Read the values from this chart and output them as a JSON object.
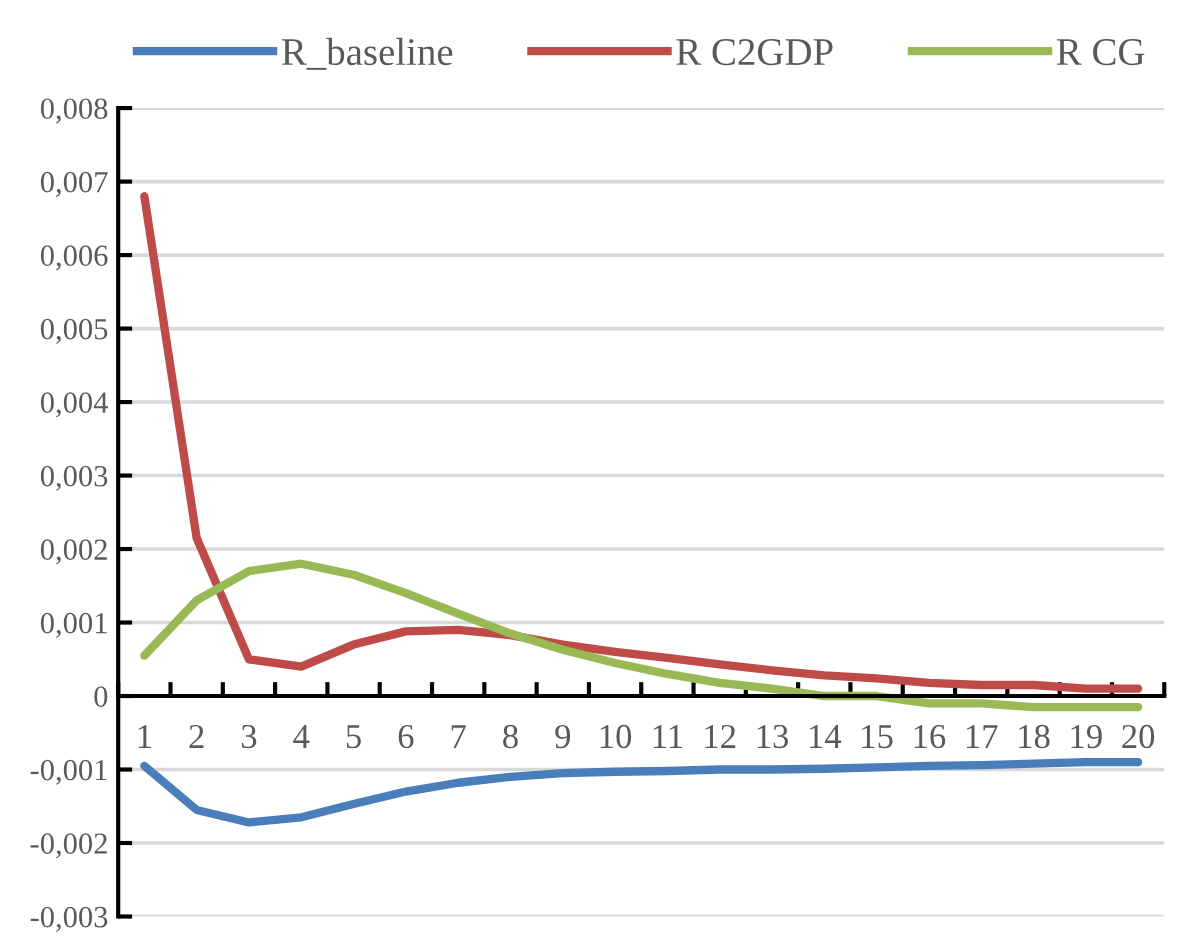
{
  "chart_data": {
    "type": "line",
    "categories": [
      "1",
      "2",
      "3",
      "4",
      "5",
      "6",
      "7",
      "8",
      "9",
      "10",
      "11",
      "12",
      "13",
      "14",
      "15",
      "16",
      "17",
      "18",
      "19",
      "20"
    ],
    "series": [
      {
        "name": "R_baseline",
        "color": "#4a7ebb",
        "values": [
          -0.00095,
          -0.00155,
          -0.00172,
          -0.00165,
          -0.00147,
          -0.0013,
          -0.00118,
          -0.0011,
          -0.00105,
          -0.00103,
          -0.00102,
          -0.001,
          -0.001,
          -0.00099,
          -0.00097,
          -0.00095,
          -0.00094,
          -0.00092,
          -0.0009,
          -0.0009
        ]
      },
      {
        "name": "R C2GDP",
        "color": "#be4b48",
        "values": [
          0.0068,
          0.00215,
          0.0005,
          0.0004,
          0.0007,
          0.00088,
          0.0009,
          0.00083,
          0.0007,
          0.0006,
          0.00052,
          0.00043,
          0.00035,
          0.00028,
          0.00024,
          0.00018,
          0.00015,
          0.00015,
          0.0001,
          0.0001
        ]
      },
      {
        "name": "R CG",
        "color": "#98b954",
        "values": [
          0.00055,
          0.0013,
          0.0017,
          0.0018,
          0.00165,
          0.0014,
          0.00112,
          0.00085,
          0.00063,
          0.00045,
          0.0003,
          0.00018,
          0.0001,
          0.0,
          0.0,
          -0.0001,
          -0.0001,
          -0.00015,
          -0.00015,
          -0.00015
        ]
      }
    ],
    "ylim": [
      -0.003,
      0.008
    ],
    "yticks": [
      {
        "value": -0.003,
        "label": "-0,003"
      },
      {
        "value": -0.002,
        "label": "-0,002"
      },
      {
        "value": -0.001,
        "label": "-0,001"
      },
      0,
      {
        "value": 0.001,
        "label": "0,001"
      },
      {
        "value": 0.002,
        "label": "0,002"
      },
      {
        "value": 0.003,
        "label": "0,003"
      },
      {
        "value": 0.004,
        "label": "0,004"
      },
      {
        "value": 0.005,
        "label": "0,005"
      },
      {
        "value": 0.006,
        "label": "0,006"
      },
      {
        "value": 0.007,
        "label": "0,007"
      },
      {
        "value": 0.008,
        "label": "0,008"
      }
    ],
    "grid": "y",
    "legend": "top",
    "marker": "none",
    "line_style": "solid"
  }
}
